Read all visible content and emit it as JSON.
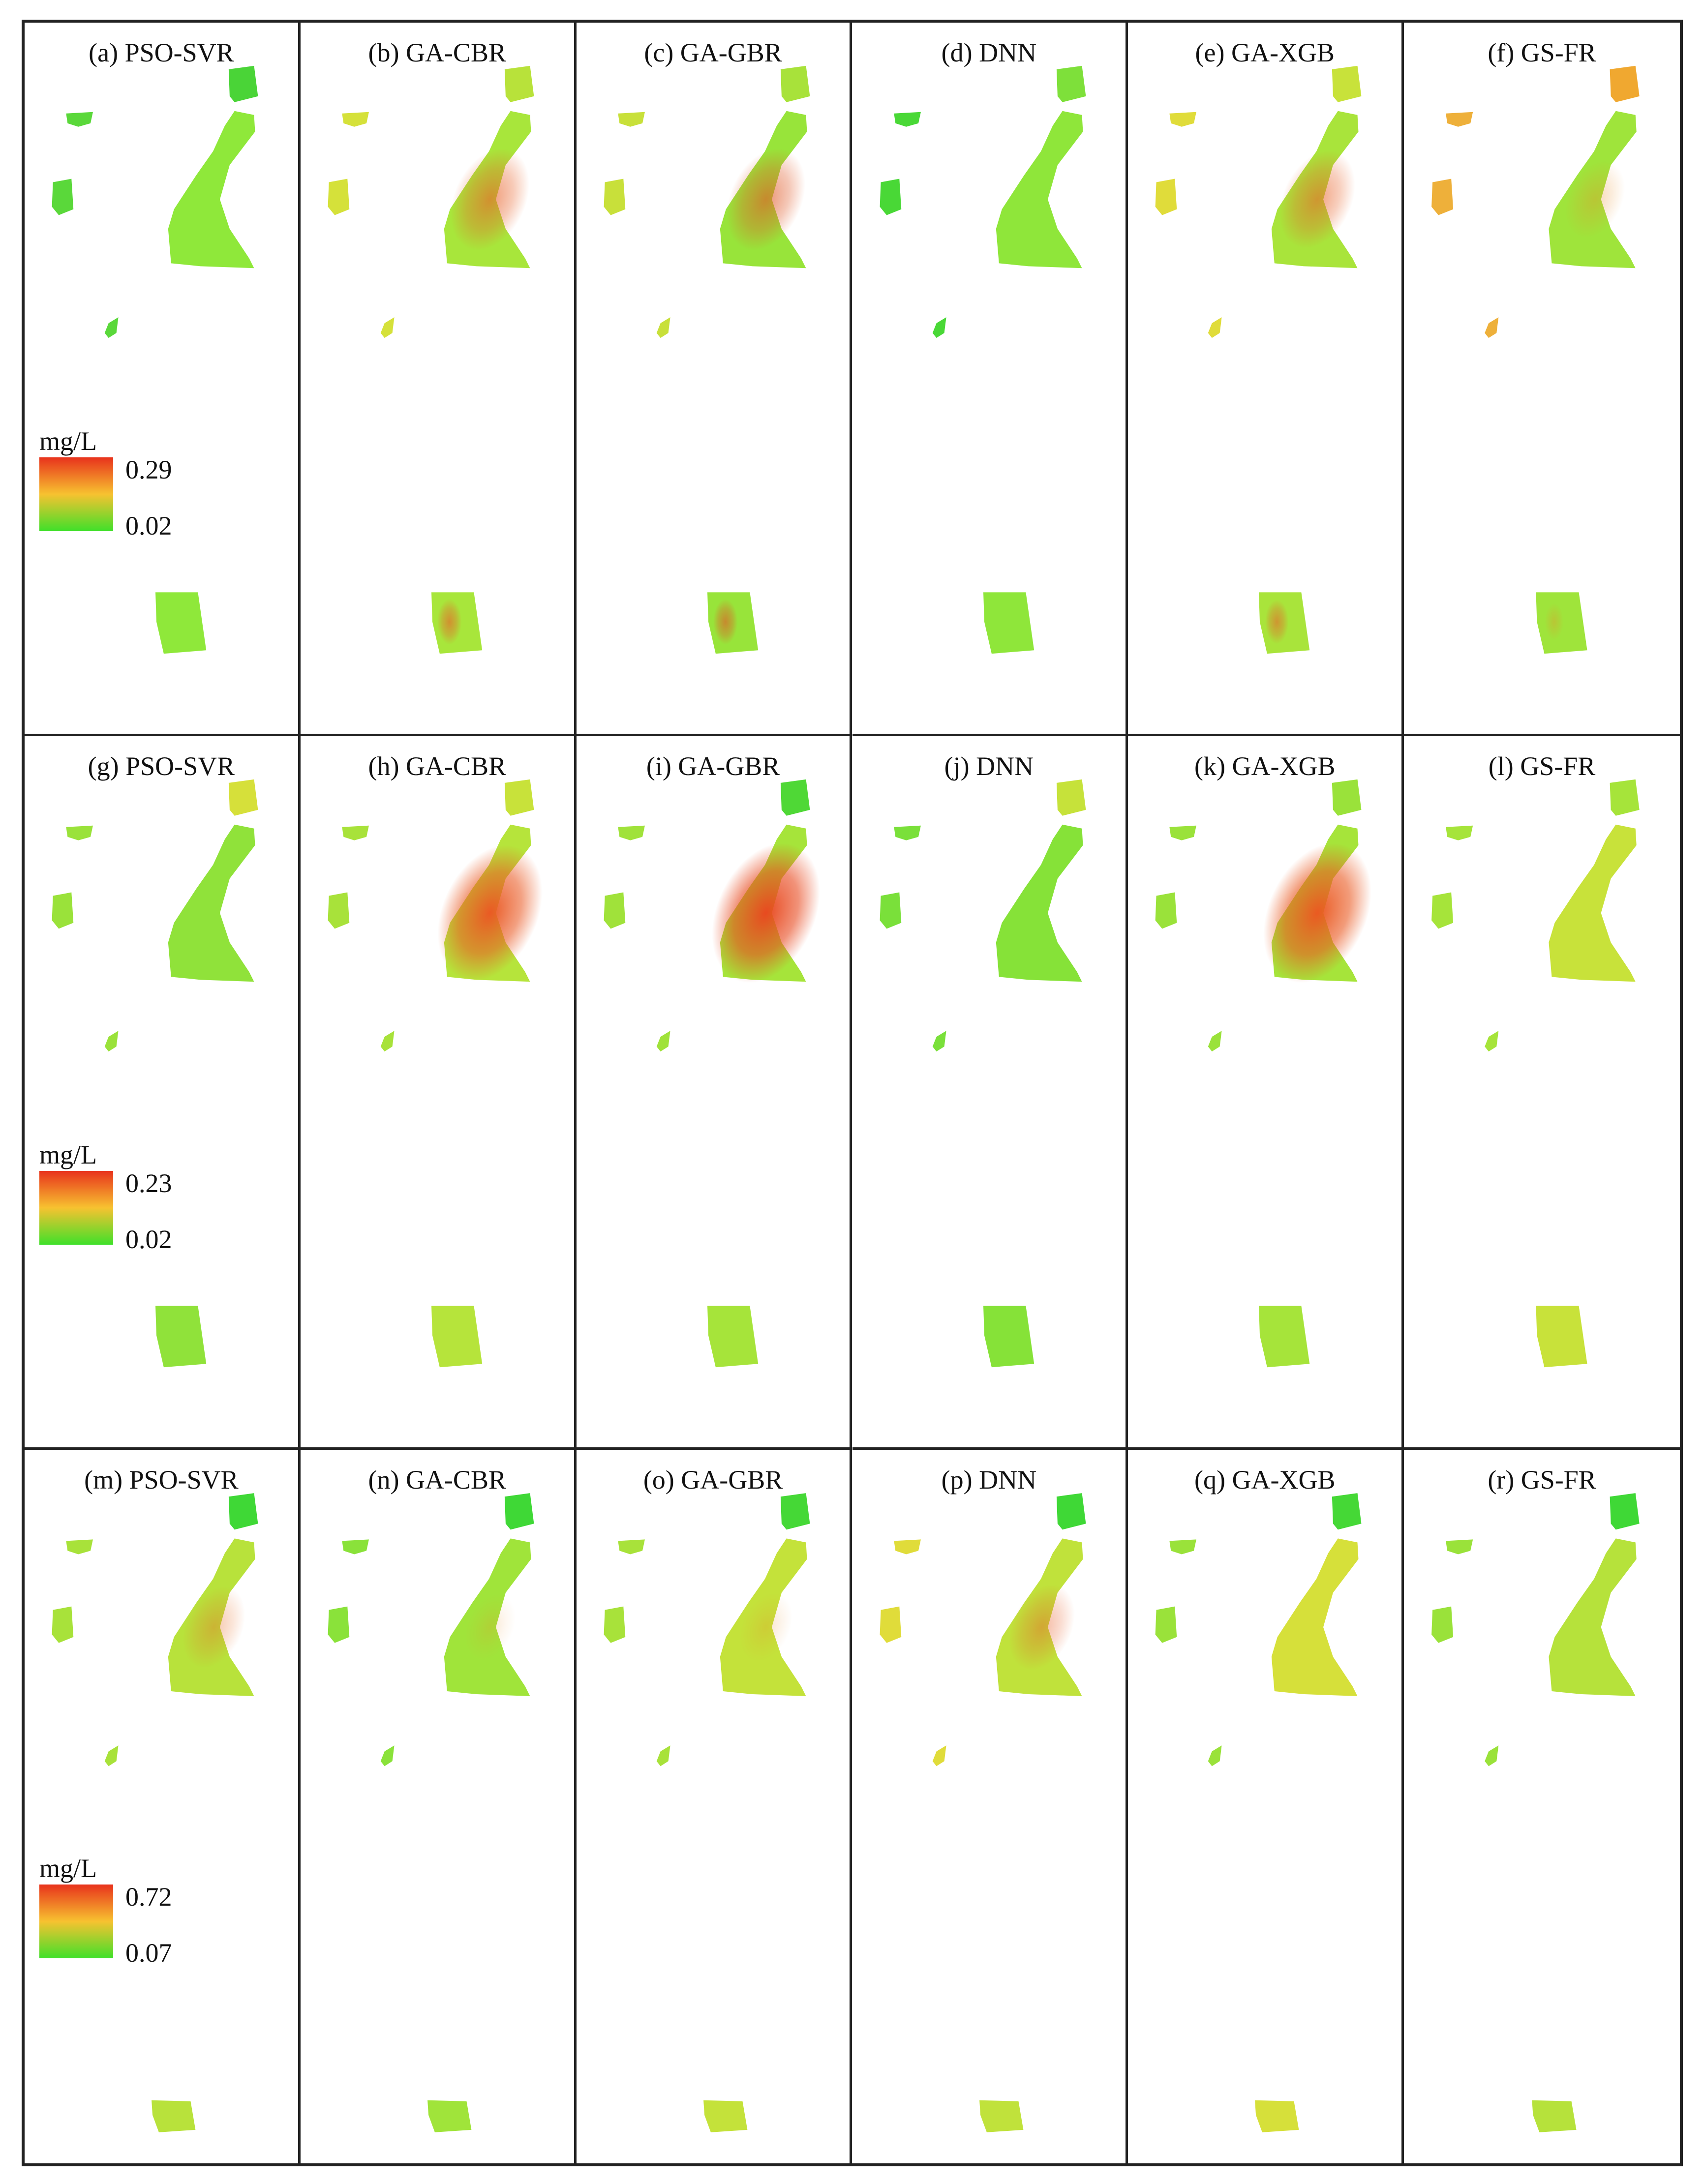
{
  "figure": {
    "rows": [
      {
        "legend": {
          "unit": "mg/L",
          "max": "0.29",
          "min": "0.02",
          "colors": [
            "#e8321c",
            "#f7c230",
            "#3fe02a"
          ]
        },
        "panels": [
          {
            "label": "(a) PSO-SVR",
            "fill": "#8fe83a",
            "hot": 0.0,
            "hotColor": "#e8632a",
            "ne": "#4ad437",
            "islands": "#5ad83a"
          },
          {
            "label": "(b) GA-CBR",
            "fill": "#a8e63b",
            "hot": 0.55,
            "hotColor": "#e8632a",
            "ne": "#b8e23a",
            "islands": "#d5e13a"
          },
          {
            "label": "(c) GA-GBR",
            "fill": "#98e43a",
            "hot": 0.55,
            "hotColor": "#e05a28",
            "ne": "#a8e23a",
            "islands": "#c8e03a"
          },
          {
            "label": "(d) DNN",
            "fill": "#8fe63a",
            "hot": 0.0,
            "hotColor": "#e8632a",
            "ne": "#7ee03a",
            "islands": "#49d836"
          },
          {
            "label": "(e) GA-XGB",
            "fill": "#a9e43b",
            "hot": 0.5,
            "hotColor": "#e8632a",
            "ne": "#c8e23a",
            "islands": "#e0dc3a"
          },
          {
            "label": "(f) GS-FR",
            "fill": "#9fe43b",
            "hot": 0.25,
            "hotColor": "#e8902a",
            "ne": "#f0a830",
            "islands": "#eeb03a"
          }
        ]
      },
      {
        "legend": {
          "unit": "mg/L",
          "max": "0.23",
          "min": "0.02",
          "colors": [
            "#e8321c",
            "#f7c230",
            "#3fe02a"
          ]
        },
        "panels": [
          {
            "label": "(g) PSO-SVR",
            "fill": "#90e23a",
            "hot": 0.0,
            "hotColor": "#e8632a",
            "ne": "#d6e03a",
            "islands": "#9ae23a"
          },
          {
            "label": "(h) GA-CBR",
            "fill": "#b6e43b",
            "hot": 0.95,
            "hotColor": "#ea5a24",
            "ne": "#c8e23a",
            "islands": "#a8e23a"
          },
          {
            "label": "(i) GA-GBR",
            "fill": "#a6e43a",
            "hot": 1.0,
            "hotColor": "#e84a20",
            "ne": "#4fd836",
            "islands": "#a0e23a"
          },
          {
            "label": "(j) DNN",
            "fill": "#86e238",
            "hot": 0.0,
            "hotColor": "#e8632a",
            "ne": "#c6e23a",
            "islands": "#7ae03a"
          },
          {
            "label": "(k) GA-XGB",
            "fill": "#a6e43a",
            "hot": 1.0,
            "hotColor": "#ea5a22",
            "ne": "#9ae23a",
            "islands": "#9ae23a"
          },
          {
            "label": "(l) GS-FR",
            "fill": "#c8e23a",
            "hot": 0.0,
            "hotColor": "#e8632a",
            "ne": "#a6e43a",
            "islands": "#a6e43a"
          }
        ]
      },
      {
        "legend": {
          "unit": "mg/L",
          "max": "0.72",
          "min": "0.07",
          "colors": [
            "#e8321c",
            "#f7c230",
            "#3fe02a"
          ]
        },
        "panels": [
          {
            "label": "(m) PSO-SVR",
            "fill": "#b8e23b",
            "hot": 0.3,
            "hotColor": "#e8702a",
            "ne": "#3fd836",
            "islands": "#a8e23a"
          },
          {
            "label": "(n) GA-CBR",
            "fill": "#a0e43a",
            "hot": 0.12,
            "hotColor": "#e8902a",
            "ne": "#3fd836",
            "islands": "#8ae23a"
          },
          {
            "label": "(o) GA-GBR",
            "fill": "#c4e23a",
            "hot": 0.15,
            "hotColor": "#e8902a",
            "ne": "#45d836",
            "islands": "#a8e23a"
          },
          {
            "label": "(p) DNN",
            "fill": "#c0e23b",
            "hot": 0.35,
            "hotColor": "#e8602a",
            "ne": "#3fd836",
            "islands": "#e0dc3a"
          },
          {
            "label": "(q) GA-XGB",
            "fill": "#d6e03a",
            "hot": 0.0,
            "hotColor": "#e8902a",
            "ne": "#45d836",
            "islands": "#9ae23a"
          },
          {
            "label": "(r) GS-FR",
            "fill": "#b6e23b",
            "hot": 0.0,
            "hotColor": "#e8902a",
            "ne": "#3fd836",
            "islands": "#9ae23a"
          }
        ]
      }
    ]
  }
}
